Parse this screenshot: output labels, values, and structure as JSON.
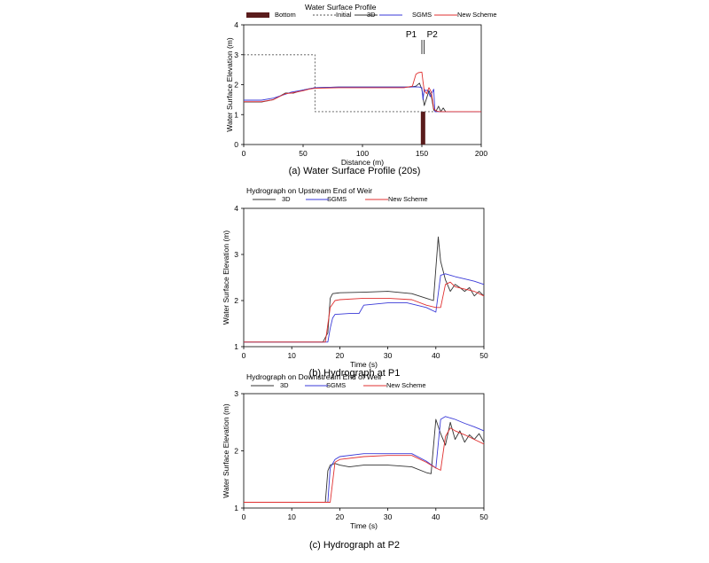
{
  "chart_data": [
    {
      "type": "line",
      "title": "Water Surface Profile",
      "caption": "(a) Water Surface Profile (20s)",
      "xlabel": "Distance (m)",
      "ylabel": "Water Surface Elevation (m)",
      "xlim": [
        0,
        200
      ],
      "ylim": [
        0,
        4
      ],
      "xticks": [
        "0",
        "50",
        "100",
        "150",
        "200"
      ],
      "yticks": [
        "0",
        "1",
        "2",
        "3",
        "4"
      ],
      "grid": false,
      "legend_position": "top",
      "legend": [
        "Bottom",
        "Initial",
        "3D",
        "SGMS",
        "New Scheme"
      ],
      "markers": [
        {
          "label": "P1",
          "x": 150
        },
        {
          "label": "P2",
          "x": 152
        }
      ],
      "bars": [
        {
          "name": "Bottom",
          "color": "#5a1c1c",
          "x": 151,
          "y": 1.1
        }
      ],
      "series": [
        {
          "name": "Initial",
          "color": "#555555",
          "dash": "2,2",
          "x": [
            0,
            60,
            60,
            200
          ],
          "y": [
            3.0,
            3.0,
            1.1,
            1.1
          ]
        },
        {
          "name": "3D",
          "color": "#333333",
          "x": [
            0,
            15,
            25,
            35,
            42,
            50,
            55,
            60,
            80,
            100,
            120,
            140,
            145,
            148,
            150,
            152,
            154,
            156,
            158,
            160,
            162,
            164,
            166,
            168,
            170,
            200
          ],
          "y": [
            1.42,
            1.42,
            1.5,
            1.72,
            1.72,
            1.82,
            1.86,
            1.9,
            1.92,
            1.92,
            1.92,
            1.92,
            1.95,
            2.05,
            1.85,
            1.3,
            1.55,
            1.8,
            1.62,
            1.15,
            1.12,
            1.28,
            1.1,
            1.22,
            1.1,
            1.1
          ]
        },
        {
          "name": "SGMS",
          "color": "#3a3ad8",
          "x": [
            0,
            15,
            25,
            35,
            40,
            50,
            55,
            60,
            80,
            100,
            120,
            140,
            145,
            148,
            150,
            151,
            152,
            153,
            155,
            157,
            160,
            161,
            163,
            200
          ],
          "y": [
            1.48,
            1.48,
            1.55,
            1.68,
            1.75,
            1.82,
            1.86,
            1.9,
            1.92,
            1.92,
            1.92,
            1.92,
            1.93,
            1.92,
            1.9,
            1.5,
            1.85,
            1.8,
            1.82,
            1.6,
            1.85,
            1.1,
            1.1,
            1.1
          ]
        },
        {
          "name": "New Scheme",
          "color": "#e03030",
          "x": [
            0,
            15,
            25,
            35,
            40,
            50,
            55,
            60,
            80,
            100,
            120,
            135,
            142,
            145,
            147,
            150,
            151,
            152,
            154,
            156,
            158,
            160,
            162,
            165,
            200
          ],
          "y": [
            1.43,
            1.43,
            1.5,
            1.7,
            1.72,
            1.8,
            1.85,
            1.88,
            1.9,
            1.9,
            1.9,
            1.9,
            1.95,
            2.35,
            2.4,
            2.42,
            2.1,
            1.8,
            1.7,
            1.9,
            1.75,
            1.2,
            1.12,
            1.1,
            1.1
          ]
        }
      ]
    },
    {
      "type": "line",
      "title": "Hydrograph on Upstream End of Weir",
      "caption": "(b) Hydrograph at P1",
      "xlabel": "Time (s)",
      "ylabel": "Water Surface Elevation (m)",
      "xlim": [
        0,
        50
      ],
      "ylim": [
        1,
        4
      ],
      "xticks": [
        "0",
        "10",
        "20",
        "30",
        "40",
        "50"
      ],
      "yticks": [
        "1",
        "2",
        "3",
        "4"
      ],
      "grid": false,
      "legend_position": "top-left",
      "legend": [
        "3D",
        "SGMS",
        "New Scheme"
      ],
      "series": [
        {
          "name": "3D",
          "color": "#333333",
          "x": [
            0,
            16.5,
            17.5,
            18,
            18.5,
            20,
            25,
            30,
            35,
            38,
            39.5,
            40,
            40.5,
            41,
            42,
            43,
            44,
            45,
            46,
            47,
            48,
            49,
            50
          ],
          "y": [
            1.1,
            1.1,
            1.3,
            2.05,
            2.15,
            2.17,
            2.18,
            2.2,
            2.15,
            2.05,
            2.0,
            2.7,
            3.38,
            2.85,
            2.45,
            2.2,
            2.35,
            2.28,
            2.2,
            2.28,
            2.1,
            2.2,
            2.1
          ]
        },
        {
          "name": "SGMS",
          "color": "#3a3ad8",
          "x": [
            0,
            17.5,
            18,
            18.5,
            19,
            22,
            24,
            25,
            30,
            34,
            38,
            40,
            41,
            42,
            44,
            46,
            48,
            50
          ],
          "y": [
            1.1,
            1.1,
            1.4,
            1.62,
            1.7,
            1.72,
            1.72,
            1.9,
            1.95,
            1.95,
            1.85,
            1.75,
            2.55,
            2.58,
            2.52,
            2.47,
            2.42,
            2.35
          ]
        },
        {
          "name": "New Scheme",
          "color": "#e03030",
          "x": [
            0,
            17,
            18,
            19,
            20,
            25,
            30,
            35,
            38,
            40,
            41,
            42,
            43,
            44,
            46,
            48,
            50
          ],
          "y": [
            1.1,
            1.1,
            1.85,
            2.0,
            2.02,
            2.05,
            2.05,
            2.02,
            1.9,
            1.85,
            1.85,
            2.35,
            2.4,
            2.3,
            2.25,
            2.2,
            2.1
          ]
        }
      ]
    },
    {
      "type": "line",
      "title": "Hydrograph on Downstream End of Weir",
      "caption": "(c) Hydrograph at P2",
      "xlabel": "Time (s)",
      "ylabel": "Water Surface Elevation (m)",
      "xlim": [
        0,
        50
      ],
      "ylim": [
        1,
        3
      ],
      "xticks": [
        "0",
        "10",
        "20",
        "30",
        "40",
        "50"
      ],
      "yticks": [
        "1",
        "2",
        "3"
      ],
      "grid": false,
      "legend_position": "top-left",
      "legend": [
        "3D",
        "SGMS",
        "New Scheme"
      ],
      "series": [
        {
          "name": "3D",
          "color": "#333333",
          "x": [
            0,
            17,
            17.5,
            18,
            19,
            20,
            22,
            25,
            30,
            35,
            38,
            39,
            40,
            41,
            42,
            43,
            44,
            45,
            46,
            47,
            48,
            49,
            50
          ],
          "y": [
            1.1,
            1.1,
            1.65,
            1.75,
            1.78,
            1.75,
            1.72,
            1.75,
            1.75,
            1.72,
            1.62,
            1.6,
            2.55,
            2.3,
            2.1,
            2.5,
            2.2,
            2.35,
            2.15,
            2.28,
            2.2,
            2.3,
            2.15
          ]
        },
        {
          "name": "SGMS",
          "color": "#3a3ad8",
          "x": [
            0,
            17.5,
            18,
            19,
            20,
            25,
            30,
            35,
            38,
            40,
            41,
            42,
            44,
            46,
            48,
            50
          ],
          "y": [
            1.1,
            1.1,
            1.7,
            1.85,
            1.9,
            1.95,
            1.95,
            1.95,
            1.82,
            1.7,
            2.55,
            2.6,
            2.55,
            2.48,
            2.42,
            2.35
          ]
        },
        {
          "name": "New Scheme",
          "color": "#e03030",
          "x": [
            0,
            18,
            19,
            20,
            25,
            30,
            35,
            38,
            40,
            41,
            42,
            43,
            44,
            46,
            48,
            50
          ],
          "y": [
            1.1,
            1.1,
            1.8,
            1.85,
            1.9,
            1.92,
            1.92,
            1.8,
            1.7,
            1.66,
            2.25,
            2.4,
            2.35,
            2.28,
            2.2,
            2.12
          ]
        }
      ]
    }
  ]
}
